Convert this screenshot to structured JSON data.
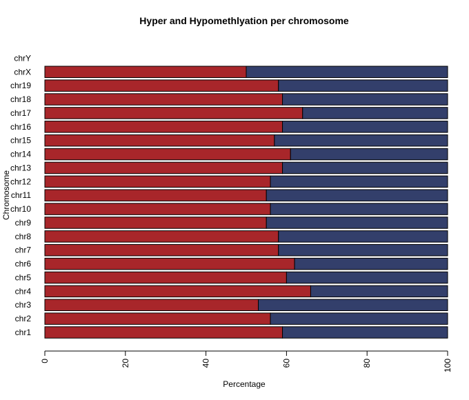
{
  "chart_data": {
    "type": "bar",
    "orientation": "horizontal",
    "stacked": true,
    "title": "Hyper and Hypomethlyation per chromosome",
    "xlabel": "Percentage",
    "ylabel": "Chromosome",
    "xlim": [
      0,
      100
    ],
    "x_ticks": [
      "0",
      "20",
      "40",
      "60",
      "80",
      "100"
    ],
    "grid": false,
    "categories": [
      "chr1",
      "chr2",
      "chr3",
      "chr4",
      "chr5",
      "chr6",
      "chr7",
      "chr8",
      "chr9",
      "chr10",
      "chr11",
      "chr12",
      "chr13",
      "chr14",
      "chr15",
      "chr16",
      "chr17",
      "chr18",
      "chr19",
      "chrX",
      "chrY"
    ],
    "series": [
      {
        "color": "#a8262a",
        "values": [
          59,
          56,
          53,
          66,
          60,
          62,
          58,
          58,
          55,
          56,
          55,
          56,
          59,
          61,
          57,
          59,
          64,
          59,
          58,
          50,
          0
        ]
      },
      {
        "color": "#333f6b",
        "values": [
          41,
          44,
          47,
          34,
          40,
          38,
          42,
          42,
          45,
          44,
          45,
          44,
          41,
          39,
          43,
          41,
          36,
          41,
          42,
          50,
          0
        ]
      }
    ]
  }
}
